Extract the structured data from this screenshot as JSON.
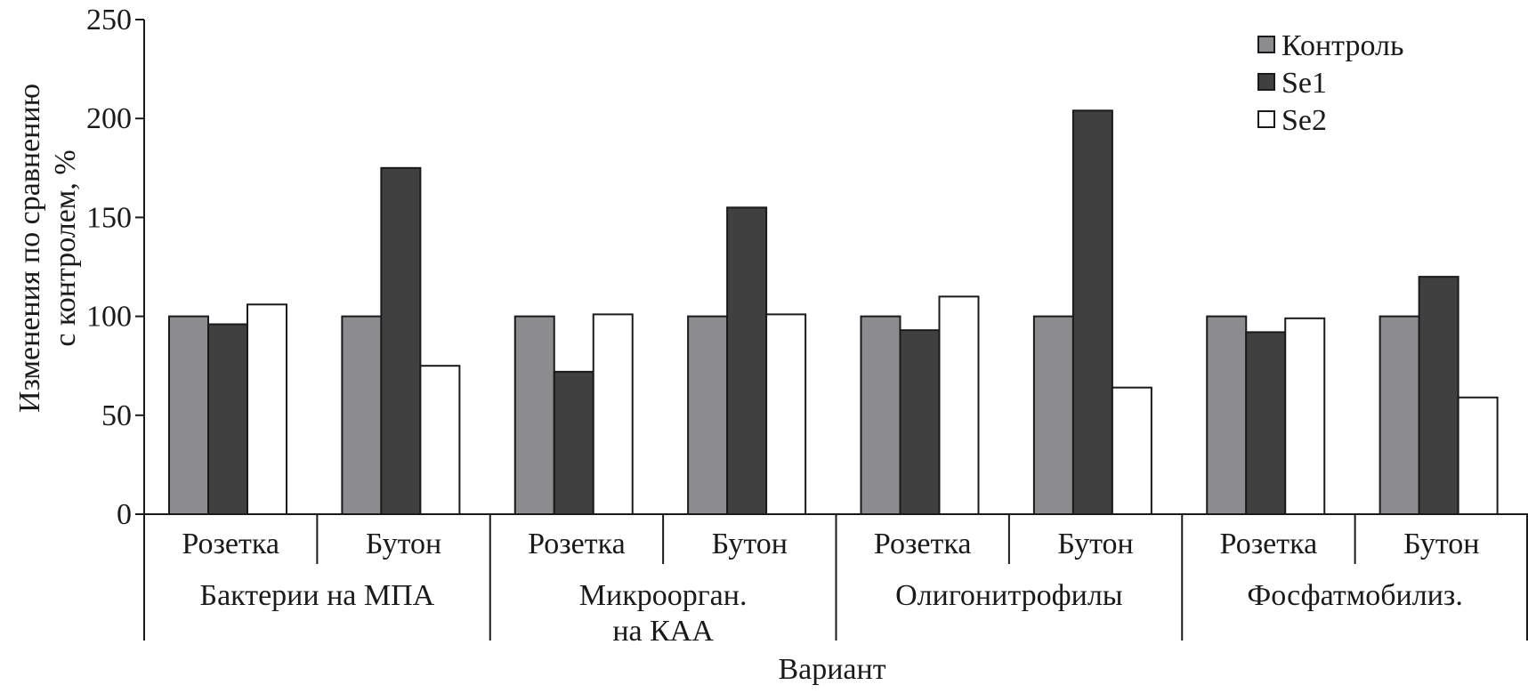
{
  "chart_data": {
    "type": "bar",
    "ylabel_line1": "Изменения по сравнению",
    "ylabel_line2": "с контролем, %",
    "xlabel": "Вариант",
    "ylim": [
      0,
      250
    ],
    "yticks": [
      0,
      50,
      100,
      150,
      200,
      250
    ],
    "groups": [
      {
        "label_lines": [
          "Бактерии на МПА"
        ],
        "stages": [
          "Розетка",
          "Бутон"
        ]
      },
      {
        "label_lines": [
          "Микроорган.",
          "на КАА"
        ],
        "stages": [
          "Розетка",
          "Бутон"
        ]
      },
      {
        "label_lines": [
          "Олигонитрофилы"
        ],
        "stages": [
          "Розетка",
          "Бутон"
        ]
      },
      {
        "label_lines": [
          "Фосфатмобилиз."
        ],
        "stages": [
          "Розетка",
          "Бутон"
        ]
      }
    ],
    "series": [
      {
        "name": "Контроль",
        "color": "#8c8c8e",
        "values": [
          100,
          100,
          100,
          100,
          100,
          100,
          100,
          100
        ]
      },
      {
        "name": "Se1",
        "color": "#404040",
        "values": [
          96,
          175,
          72,
          155,
          93,
          204,
          92,
          120
        ]
      },
      {
        "name": "Se2",
        "color": "#ffffff",
        "values": [
          106,
          75,
          101,
          101,
          110,
          64,
          99,
          59
        ]
      }
    ],
    "legend_position": "top-right"
  }
}
